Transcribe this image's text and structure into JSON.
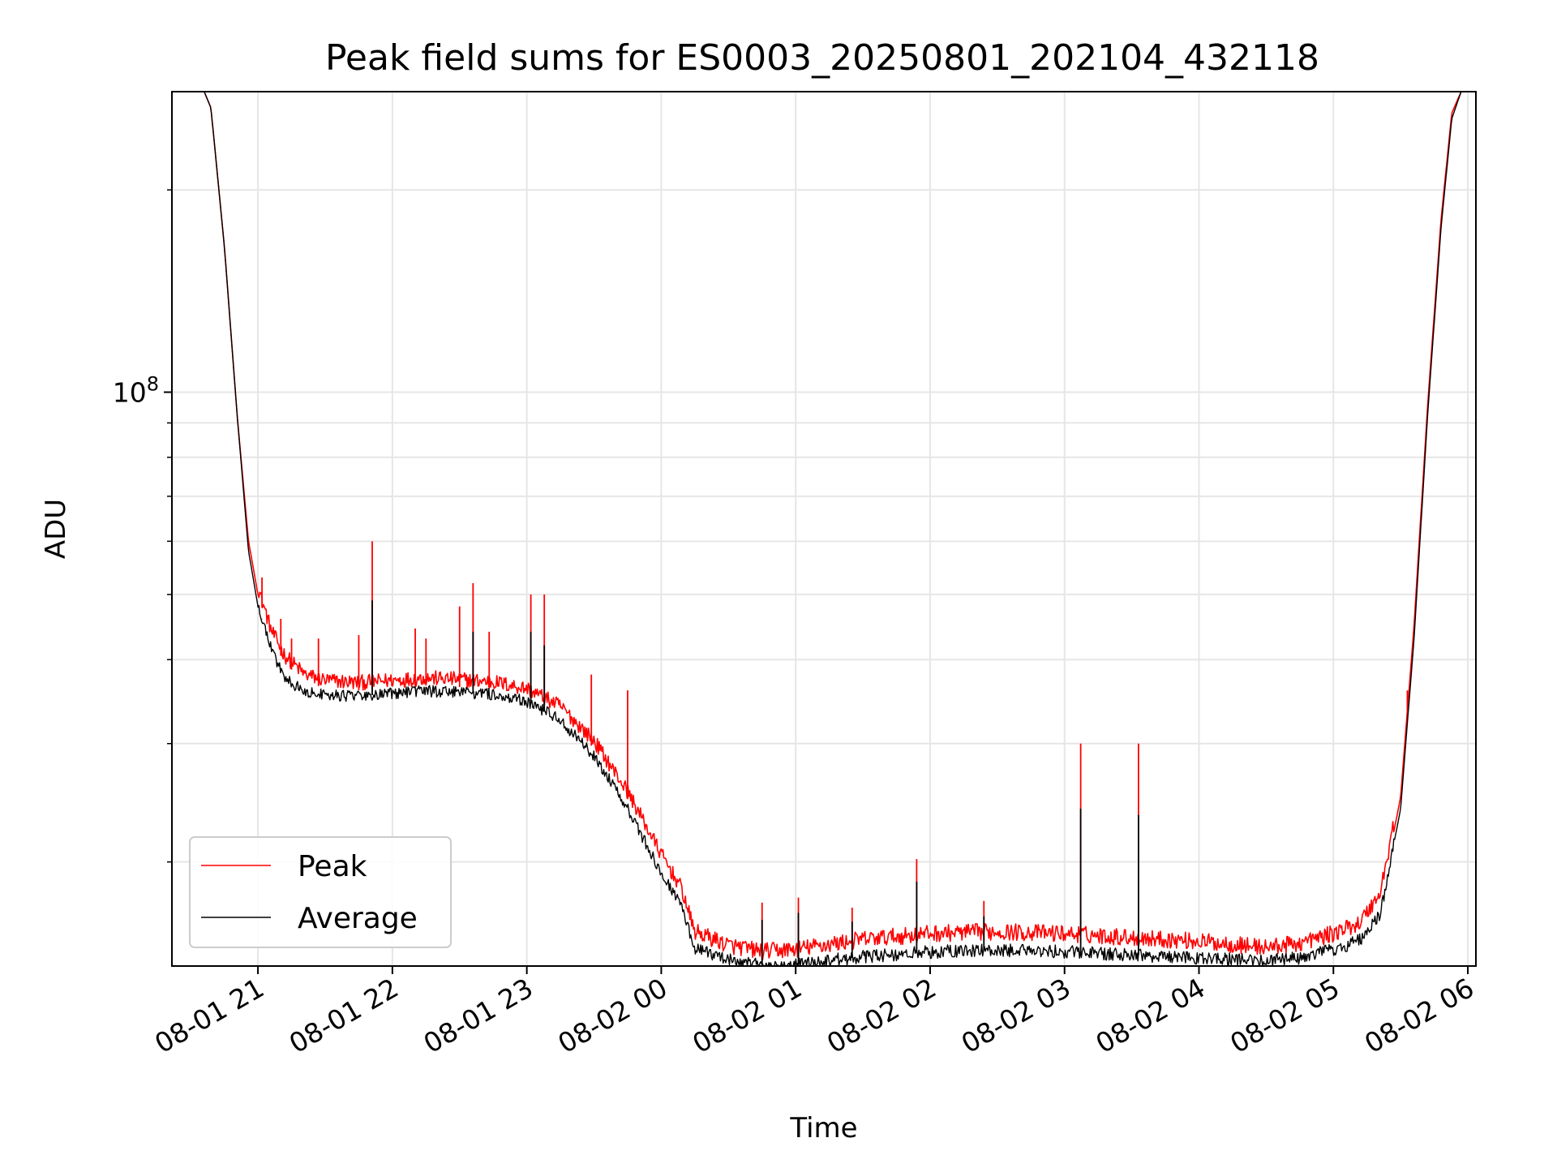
{
  "chart_data": {
    "type": "line",
    "title": "Peak field sums for ES0003_20250801_202104_432118",
    "xlabel": "Time",
    "ylabel": "ADU",
    "y_scale": "log",
    "grid": true,
    "legend_position": "bottom-left",
    "x_ticks": [
      "08-01 21",
      "08-01 22",
      "08-01 23",
      "08-02 00",
      "08-02 01",
      "08-02 02",
      "08-02 03",
      "08-02 04",
      "08-02 05",
      "08-02 06"
    ],
    "x_tick_hours": [
      21,
      22,
      23,
      24,
      25,
      26,
      27,
      28,
      29,
      30
    ],
    "x_range_hours": [
      20.36,
      30.06
    ],
    "y_tick_label": {
      "base": "10",
      "exponent": "8"
    },
    "y_tick_value": 100000000,
    "y_range": [
      14000000,
      280000000
    ],
    "series": [
      {
        "name": "Peak",
        "color": "#ff0000",
        "points": [
          [
            20.6,
            280000000
          ],
          [
            20.65,
            265000000
          ],
          [
            20.75,
            165000000
          ],
          [
            20.85,
            90000000
          ],
          [
            20.93,
            60000000
          ],
          [
            21.0,
            50000000
          ],
          [
            21.1,
            43000000
          ],
          [
            21.2,
            39500000
          ],
          [
            21.35,
            37000000
          ],
          [
            21.5,
            36300000
          ],
          [
            21.75,
            36000000
          ],
          [
            22.0,
            36300000
          ],
          [
            22.25,
            36600000
          ],
          [
            22.5,
            36400000
          ],
          [
            22.75,
            36100000
          ],
          [
            23.0,
            35300000
          ],
          [
            23.25,
            33200000
          ],
          [
            23.5,
            29500000
          ],
          [
            23.75,
            24800000
          ],
          [
            24.0,
            20000000
          ],
          [
            24.15,
            17800000
          ],
          [
            24.25,
            15300000
          ],
          [
            24.5,
            14600000
          ],
          [
            24.75,
            14300000
          ],
          [
            25.0,
            14400000
          ],
          [
            25.5,
            14900000
          ],
          [
            26.0,
            15200000
          ],
          [
            26.5,
            15300000
          ],
          [
            27.0,
            15200000
          ],
          [
            27.5,
            15000000
          ],
          [
            28.0,
            14800000
          ],
          [
            28.5,
            14500000
          ],
          [
            28.75,
            14700000
          ],
          [
            29.0,
            15200000
          ],
          [
            29.2,
            15800000
          ],
          [
            29.35,
            17500000
          ],
          [
            29.5,
            25000000
          ],
          [
            29.6,
            45000000
          ],
          [
            29.7,
            95000000
          ],
          [
            29.8,
            180000000
          ],
          [
            29.88,
            260000000
          ],
          [
            29.95,
            280000000
          ]
        ],
        "spikes": [
          [
            21.03,
            53000000
          ],
          [
            21.17,
            46000000
          ],
          [
            21.25,
            43000000
          ],
          [
            21.45,
            43000000
          ],
          [
            21.75,
            43500000
          ],
          [
            21.85,
            60000000
          ],
          [
            22.17,
            44500000
          ],
          [
            22.25,
            43000000
          ],
          [
            22.5,
            48000000
          ],
          [
            22.6,
            52000000
          ],
          [
            22.72,
            44000000
          ],
          [
            23.03,
            50000000
          ],
          [
            23.13,
            50000000
          ],
          [
            23.48,
            38000000
          ],
          [
            23.75,
            36000000
          ],
          [
            24.75,
            17400000
          ],
          [
            25.02,
            17700000
          ],
          [
            25.42,
            17100000
          ],
          [
            25.9,
            20200000
          ],
          [
            26.4,
            17500000
          ],
          [
            27.12,
            30000000
          ],
          [
            27.55,
            30000000
          ],
          [
            29.55,
            36000000
          ]
        ]
      },
      {
        "name": "Average",
        "color": "#000000",
        "points": [
          [
            20.6,
            280000000
          ],
          [
            20.65,
            265000000
          ],
          [
            20.75,
            165000000
          ],
          [
            20.85,
            90000000
          ],
          [
            20.93,
            58000000
          ],
          [
            21.0,
            48000000
          ],
          [
            21.1,
            41500000
          ],
          [
            21.2,
            37500000
          ],
          [
            21.35,
            35800000
          ],
          [
            21.5,
            35500000
          ],
          [
            21.75,
            35300000
          ],
          [
            22.0,
            35600000
          ],
          [
            22.25,
            35900000
          ],
          [
            22.5,
            35800000
          ],
          [
            22.75,
            35500000
          ],
          [
            23.0,
            34700000
          ],
          [
            23.25,
            32500000
          ],
          [
            23.5,
            28800000
          ],
          [
            23.75,
            24000000
          ],
          [
            24.0,
            19300000
          ],
          [
            24.15,
            17200000
          ],
          [
            24.25,
            14900000
          ],
          [
            24.5,
            14300000
          ],
          [
            24.75,
            14050000
          ],
          [
            25.0,
            14100000
          ],
          [
            25.5,
            14450000
          ],
          [
            26.0,
            14700000
          ],
          [
            26.5,
            14800000
          ],
          [
            27.0,
            14700000
          ],
          [
            27.5,
            14550000
          ],
          [
            28.0,
            14400000
          ],
          [
            28.5,
            14250000
          ],
          [
            28.75,
            14400000
          ],
          [
            29.0,
            14800000
          ],
          [
            29.2,
            15300000
          ],
          [
            29.35,
            16800000
          ],
          [
            29.5,
            24000000
          ],
          [
            29.6,
            43000000
          ],
          [
            29.7,
            92000000
          ],
          [
            29.8,
            175000000
          ],
          [
            29.88,
            255000000
          ],
          [
            29.95,
            280000000
          ]
        ],
        "spikes": [
          [
            21.03,
            46000000
          ],
          [
            21.85,
            49000000
          ],
          [
            22.6,
            44000000
          ],
          [
            23.03,
            44000000
          ],
          [
            23.13,
            42000000
          ],
          [
            24.75,
            16400000
          ],
          [
            25.02,
            16800000
          ],
          [
            25.42,
            16300000
          ],
          [
            25.9,
            18700000
          ],
          [
            26.4,
            16600000
          ],
          [
            27.12,
            24000000
          ],
          [
            27.55,
            23500000
          ]
        ]
      }
    ]
  }
}
